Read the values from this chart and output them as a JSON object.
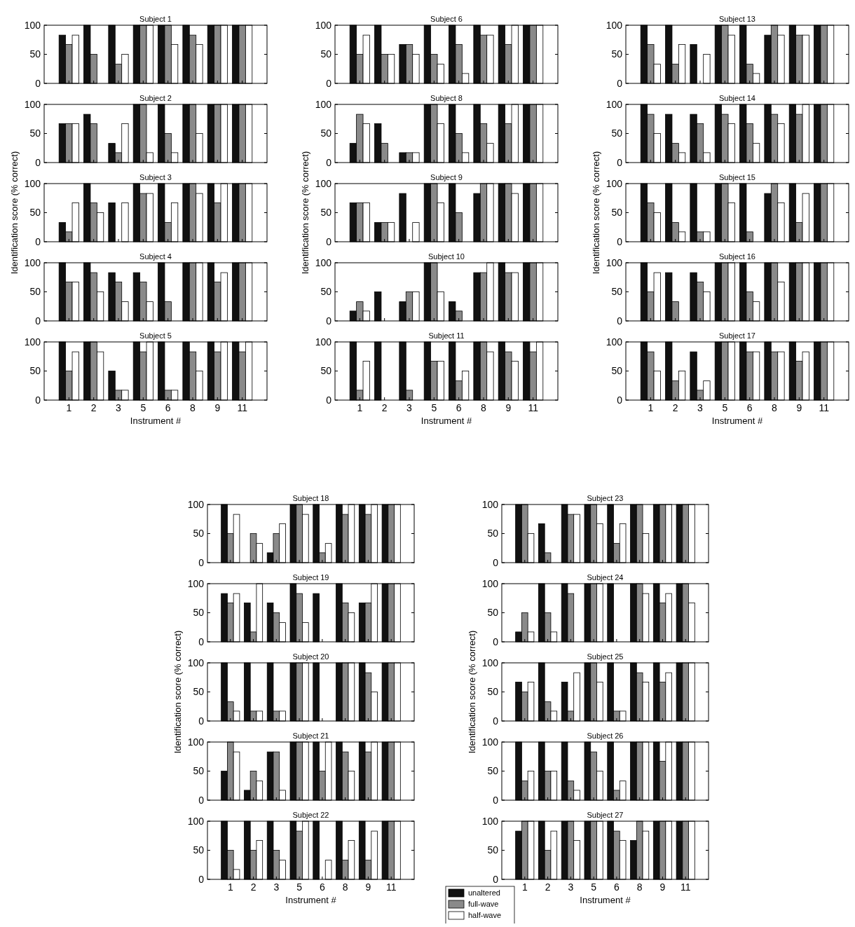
{
  "chart_data": [
    {
      "type": "bar",
      "title": "Subject 1",
      "categories": [
        "1",
        "2",
        "3",
        "5",
        "6",
        "8",
        "9",
        "11"
      ],
      "ylim": [
        0,
        100
      ],
      "yticks": [
        0,
        50,
        100
      ],
      "tick_labels": "y",
      "series": [
        {
          "color": "#111111",
          "values": [
            83,
            100,
            100,
            100,
            100,
            100,
            100,
            100
          ]
        },
        {
          "color": "#8a8a8a",
          "values": [
            67,
            50,
            33,
            100,
            100,
            83,
            100,
            100
          ]
        },
        {
          "color": "#ffffff",
          "values": [
            83,
            0,
            50,
            100,
            67,
            67,
            100,
            100
          ]
        }
      ]
    },
    {
      "type": "bar",
      "title": "Subject 2",
      "categories": [
        "1",
        "2",
        "3",
        "5",
        "6",
        "8",
        "9",
        "11"
      ],
      "ylim": [
        0,
        100
      ],
      "yticks": [
        0,
        50,
        100
      ],
      "tick_labels": "y",
      "series": [
        {
          "color": "#111111",
          "values": [
            67,
            83,
            33,
            100,
            100,
            100,
            100,
            100
          ]
        },
        {
          "color": "#8a8a8a",
          "values": [
            67,
            67,
            17,
            100,
            50,
            100,
            100,
            100
          ]
        },
        {
          "color": "#ffffff",
          "values": [
            67,
            0,
            67,
            17,
            17,
            50,
            100,
            100
          ]
        }
      ]
    },
    {
      "type": "bar",
      "title": "Subject 3",
      "ylabel": "Identification score (% correct)",
      "categories": [
        "1",
        "2",
        "3",
        "5",
        "6",
        "8",
        "9",
        "11"
      ],
      "ylim": [
        0,
        100
      ],
      "yticks": [
        0,
        50,
        100
      ],
      "tick_labels": "y",
      "series": [
        {
          "color": "#111111",
          "values": [
            33,
            100,
            67,
            100,
            100,
            100,
            100,
            100
          ]
        },
        {
          "color": "#8a8a8a",
          "values": [
            17,
            67,
            0,
            83,
            33,
            100,
            67,
            100
          ]
        },
        {
          "color": "#ffffff",
          "values": [
            67,
            50,
            67,
            83,
            67,
            83,
            100,
            100
          ]
        }
      ]
    },
    {
      "type": "bar",
      "title": "Subject 4",
      "categories": [
        "1",
        "2",
        "3",
        "5",
        "6",
        "8",
        "9",
        "11"
      ],
      "ylim": [
        0,
        100
      ],
      "yticks": [
        0,
        50,
        100
      ],
      "tick_labels": "y",
      "series": [
        {
          "color": "#111111",
          "values": [
            100,
            100,
            83,
            83,
            100,
            100,
            100,
            100
          ]
        },
        {
          "color": "#8a8a8a",
          "values": [
            67,
            83,
            67,
            67,
            33,
            100,
            67,
            100
          ]
        },
        {
          "color": "#ffffff",
          "values": [
            67,
            50,
            33,
            33,
            0,
            100,
            83,
            100
          ]
        }
      ]
    },
    {
      "type": "bar",
      "title": "Subject 5",
      "xlabel": "Instrument #",
      "categories": [
        "1",
        "2",
        "3",
        "5",
        "6",
        "8",
        "9",
        "11"
      ],
      "ylim": [
        0,
        100
      ],
      "yticks": [
        0,
        50,
        100
      ],
      "series": [
        {
          "color": "#111111",
          "values": [
            100,
            100,
            50,
            100,
            100,
            100,
            100,
            100
          ]
        },
        {
          "color": "#8a8a8a",
          "values": [
            50,
            100,
            17,
            83,
            17,
            83,
            83,
            83
          ]
        },
        {
          "color": "#ffffff",
          "values": [
            83,
            83,
            17,
            100,
            17,
            50,
            100,
            100
          ]
        }
      ]
    },
    {
      "type": "bar",
      "title": "Subject 6",
      "categories": [
        "1",
        "2",
        "3",
        "5",
        "6",
        "8",
        "9",
        "11"
      ],
      "ylim": [
        0,
        100
      ],
      "yticks": [
        0,
        50,
        100
      ],
      "tick_labels": "y",
      "series": [
        {
          "color": "#111111",
          "values": [
            100,
            100,
            67,
            100,
            100,
            100,
            100,
            100
          ]
        },
        {
          "color": "#8a8a8a",
          "values": [
            50,
            50,
            67,
            50,
            67,
            83,
            67,
            100
          ]
        },
        {
          "color": "#ffffff",
          "values": [
            83,
            50,
            50,
            33,
            17,
            83,
            100,
            100
          ]
        }
      ]
    },
    {
      "type": "bar",
      "title": "Subject 8",
      "categories": [
        "1",
        "2",
        "3",
        "5",
        "6",
        "8",
        "9",
        "11"
      ],
      "ylim": [
        0,
        100
      ],
      "yticks": [
        0,
        50,
        100
      ],
      "tick_labels": "y",
      "series": [
        {
          "color": "#111111",
          "values": [
            33,
            67,
            17,
            100,
            100,
            100,
            100,
            100
          ]
        },
        {
          "color": "#8a8a8a",
          "values": [
            83,
            33,
            17,
            100,
            50,
            67,
            67,
            100
          ]
        },
        {
          "color": "#ffffff",
          "values": [
            67,
            0,
            17,
            67,
            17,
            33,
            100,
            100
          ]
        }
      ]
    },
    {
      "type": "bar",
      "title": "Subject 9",
      "ylabel": "Identification score (% correct)",
      "categories": [
        "1",
        "2",
        "3",
        "5",
        "6",
        "8",
        "9",
        "11"
      ],
      "ylim": [
        0,
        100
      ],
      "yticks": [
        0,
        50,
        100
      ],
      "tick_labels": "y",
      "series": [
        {
          "color": "#111111",
          "values": [
            67,
            33,
            83,
            100,
            100,
            83,
            100,
            100
          ]
        },
        {
          "color": "#8a8a8a",
          "values": [
            67,
            33,
            0,
            100,
            50,
            100,
            100,
            100
          ]
        },
        {
          "color": "#ffffff",
          "values": [
            67,
            33,
            33,
            67,
            0,
            100,
            83,
            100
          ]
        }
      ]
    },
    {
      "type": "bar",
      "title": "Subject 10",
      "categories": [
        "1",
        "2",
        "3",
        "5",
        "6",
        "8",
        "9",
        "11"
      ],
      "ylim": [
        0,
        100
      ],
      "yticks": [
        0,
        50,
        100
      ],
      "tick_labels": "y",
      "series": [
        {
          "color": "#111111",
          "values": [
            17,
            50,
            33,
            100,
            33,
            83,
            100,
            100
          ]
        },
        {
          "color": "#8a8a8a",
          "values": [
            33,
            0,
            50,
            100,
            17,
            83,
            83,
            100
          ]
        },
        {
          "color": "#ffffff",
          "values": [
            17,
            0,
            50,
            50,
            0,
            100,
            83,
            100
          ]
        }
      ]
    },
    {
      "type": "bar",
      "title": "Subject 11",
      "xlabel": "Instrument #",
      "categories": [
        "1",
        "2",
        "3",
        "5",
        "6",
        "8",
        "9",
        "11"
      ],
      "ylim": [
        0,
        100
      ],
      "yticks": [
        0,
        50,
        100
      ],
      "series": [
        {
          "color": "#111111",
          "values": [
            100,
            100,
            100,
            100,
            100,
            100,
            100,
            100
          ]
        },
        {
          "color": "#8a8a8a",
          "values": [
            17,
            0,
            17,
            67,
            33,
            100,
            83,
            83
          ]
        },
        {
          "color": "#ffffff",
          "values": [
            67,
            0,
            0,
            67,
            50,
            83,
            67,
            100
          ]
        }
      ]
    },
    {
      "type": "bar",
      "title": "Subject 13",
      "categories": [
        "1",
        "2",
        "3",
        "5",
        "6",
        "8",
        "9",
        "11"
      ],
      "ylim": [
        0,
        100
      ],
      "yticks": [
        0,
        50,
        100
      ],
      "tick_labels": "y",
      "series": [
        {
          "color": "#111111",
          "values": [
            100,
            100,
            67,
            100,
            100,
            83,
            100,
            100
          ]
        },
        {
          "color": "#8a8a8a",
          "values": [
            67,
            33,
            0,
            100,
            33,
            100,
            83,
            100
          ]
        },
        {
          "color": "#ffffff",
          "values": [
            33,
            67,
            50,
            83,
            17,
            83,
            83,
            100
          ]
        }
      ]
    },
    {
      "type": "bar",
      "title": "Subject 14",
      "categories": [
        "1",
        "2",
        "3",
        "5",
        "6",
        "8",
        "9",
        "11"
      ],
      "ylim": [
        0,
        100
      ],
      "yticks": [
        0,
        50,
        100
      ],
      "tick_labels": "y",
      "series": [
        {
          "color": "#111111",
          "values": [
            100,
            83,
            83,
            100,
            100,
            100,
            100,
            100
          ]
        },
        {
          "color": "#8a8a8a",
          "values": [
            83,
            33,
            67,
            83,
            67,
            83,
            83,
            100
          ]
        },
        {
          "color": "#ffffff",
          "values": [
            50,
            17,
            17,
            67,
            33,
            67,
            100,
            100
          ]
        }
      ]
    },
    {
      "type": "bar",
      "title": "Subject 15",
      "ylabel": "Identification score (% correct)",
      "categories": [
        "1",
        "2",
        "3",
        "5",
        "6",
        "8",
        "9",
        "11"
      ],
      "ylim": [
        0,
        100
      ],
      "yticks": [
        0,
        50,
        100
      ],
      "tick_labels": "y",
      "series": [
        {
          "color": "#111111",
          "values": [
            100,
            100,
            100,
            100,
            100,
            83,
            100,
            100
          ]
        },
        {
          "color": "#8a8a8a",
          "values": [
            67,
            33,
            17,
            100,
            17,
            100,
            33,
            100
          ]
        },
        {
          "color": "#ffffff",
          "values": [
            50,
            17,
            17,
            67,
            0,
            67,
            83,
            100
          ]
        }
      ]
    },
    {
      "type": "bar",
      "title": "Subject 16",
      "categories": [
        "1",
        "2",
        "3",
        "5",
        "6",
        "8",
        "9",
        "11"
      ],
      "ylim": [
        0,
        100
      ],
      "yticks": [
        0,
        50,
        100
      ],
      "tick_labels": "y",
      "series": [
        {
          "color": "#111111",
          "values": [
            100,
            83,
            83,
            100,
            100,
            100,
            100,
            100
          ]
        },
        {
          "color": "#8a8a8a",
          "values": [
            50,
            33,
            67,
            100,
            50,
            100,
            100,
            100
          ]
        },
        {
          "color": "#ffffff",
          "values": [
            83,
            0,
            50,
            100,
            33,
            67,
            100,
            100
          ]
        }
      ]
    },
    {
      "type": "bar",
      "title": "Subject 17",
      "xlabel": "Instrument #",
      "categories": [
        "1",
        "2",
        "3",
        "5",
        "6",
        "8",
        "9",
        "11"
      ],
      "ylim": [
        0,
        100
      ],
      "yticks": [
        0,
        50,
        100
      ],
      "series": [
        {
          "color": "#111111",
          "values": [
            100,
            100,
            83,
            100,
            100,
            100,
            100,
            100
          ]
        },
        {
          "color": "#8a8a8a",
          "values": [
            83,
            33,
            17,
            100,
            83,
            83,
            67,
            100
          ]
        },
        {
          "color": "#ffffff",
          "values": [
            50,
            50,
            33,
            100,
            83,
            83,
            83,
            100
          ]
        }
      ]
    },
    {
      "type": "bar",
      "title": "Subject 18",
      "categories": [
        "1",
        "2",
        "3",
        "5",
        "6",
        "8",
        "9",
        "11"
      ],
      "ylim": [
        0,
        100
      ],
      "yticks": [
        0,
        50,
        100
      ],
      "tick_labels": "y",
      "series": [
        {
          "color": "#111111",
          "values": [
            100,
            0,
            17,
            100,
            100,
            100,
            100,
            100
          ]
        },
        {
          "color": "#8a8a8a",
          "values": [
            50,
            50,
            50,
            100,
            17,
            83,
            83,
            100
          ]
        },
        {
          "color": "#ffffff",
          "values": [
            83,
            33,
            67,
            83,
            33,
            100,
            100,
            100
          ]
        }
      ]
    },
    {
      "type": "bar",
      "title": "Subject 19",
      "categories": [
        "1",
        "2",
        "3",
        "5",
        "6",
        "8",
        "9",
        "11"
      ],
      "ylim": [
        0,
        100
      ],
      "yticks": [
        0,
        50,
        100
      ],
      "tick_labels": "y",
      "series": [
        {
          "color": "#111111",
          "values": [
            83,
            67,
            67,
            100,
            83,
            100,
            67,
            100
          ]
        },
        {
          "color": "#8a8a8a",
          "values": [
            67,
            17,
            50,
            83,
            0,
            67,
            67,
            100
          ]
        },
        {
          "color": "#ffffff",
          "values": [
            83,
            100,
            33,
            33,
            0,
            50,
            100,
            100
          ]
        }
      ]
    },
    {
      "type": "bar",
      "title": "Subject 20",
      "ylabel": "Identification score (% correct)",
      "categories": [
        "1",
        "2",
        "3",
        "5",
        "6",
        "8",
        "9",
        "11"
      ],
      "ylim": [
        0,
        100
      ],
      "yticks": [
        0,
        50,
        100
      ],
      "tick_labels": "y",
      "series": [
        {
          "color": "#111111",
          "values": [
            100,
            100,
            100,
            100,
            100,
            100,
            100,
            100
          ]
        },
        {
          "color": "#8a8a8a",
          "values": [
            33,
            17,
            17,
            100,
            0,
            100,
            83,
            100
          ]
        },
        {
          "color": "#ffffff",
          "values": [
            17,
            17,
            17,
            100,
            0,
            100,
            50,
            100
          ]
        }
      ]
    },
    {
      "type": "bar",
      "title": "Subject 21",
      "categories": [
        "1",
        "2",
        "3",
        "5",
        "6",
        "8",
        "9",
        "11"
      ],
      "ylim": [
        0,
        100
      ],
      "yticks": [
        0,
        50,
        100
      ],
      "tick_labels": "y",
      "series": [
        {
          "color": "#111111",
          "values": [
            50,
            17,
            83,
            100,
            100,
            100,
            100,
            100
          ]
        },
        {
          "color": "#8a8a8a",
          "values": [
            100,
            50,
            83,
            100,
            50,
            83,
            83,
            100
          ]
        },
        {
          "color": "#ffffff",
          "values": [
            83,
            33,
            17,
            100,
            100,
            50,
            100,
            100
          ]
        }
      ]
    },
    {
      "type": "bar",
      "title": "Subject 22",
      "xlabel": "Instrument #",
      "categories": [
        "1",
        "2",
        "3",
        "5",
        "6",
        "8",
        "9",
        "11"
      ],
      "ylim": [
        0,
        100
      ],
      "yticks": [
        0,
        50,
        100
      ],
      "series": [
        {
          "color": "#111111",
          "values": [
            100,
            100,
            100,
            100,
            100,
            100,
            100,
            100
          ]
        },
        {
          "color": "#8a8a8a",
          "values": [
            50,
            50,
            50,
            83,
            0,
            33,
            33,
            100
          ]
        },
        {
          "color": "#ffffff",
          "values": [
            17,
            67,
            33,
            100,
            33,
            67,
            83,
            100
          ]
        }
      ]
    },
    {
      "type": "bar",
      "title": "Subject 23",
      "categories": [
        "1",
        "2",
        "3",
        "5",
        "6",
        "8",
        "9",
        "11"
      ],
      "ylim": [
        0,
        100
      ],
      "yticks": [
        0,
        50,
        100
      ],
      "tick_labels": "y",
      "series": [
        {
          "color": "#111111",
          "values": [
            100,
            67,
            100,
            100,
            100,
            100,
            100,
            100
          ]
        },
        {
          "color": "#8a8a8a",
          "values": [
            100,
            17,
            83,
            100,
            33,
            100,
            100,
            100
          ]
        },
        {
          "color": "#ffffff",
          "values": [
            50,
            0,
            83,
            67,
            67,
            50,
            100,
            100
          ]
        }
      ]
    },
    {
      "type": "bar",
      "title": "Subject 24",
      "categories": [
        "1",
        "2",
        "3",
        "5",
        "6",
        "8",
        "9",
        "11"
      ],
      "ylim": [
        0,
        100
      ],
      "yticks": [
        0,
        50,
        100
      ],
      "tick_labels": "y",
      "series": [
        {
          "color": "#111111",
          "values": [
            17,
            100,
            100,
            100,
            100,
            100,
            100,
            100
          ]
        },
        {
          "color": "#8a8a8a",
          "values": [
            50,
            50,
            83,
            100,
            0,
            100,
            67,
            100
          ]
        },
        {
          "color": "#ffffff",
          "values": [
            17,
            17,
            0,
            100,
            0,
            83,
            83,
            67
          ]
        }
      ]
    },
    {
      "type": "bar",
      "title": "Subject 25",
      "ylabel": "Identification score (% correct)",
      "categories": [
        "1",
        "2",
        "3",
        "5",
        "6",
        "8",
        "9",
        "11"
      ],
      "ylim": [
        0,
        100
      ],
      "yticks": [
        0,
        50,
        100
      ],
      "tick_labels": "y",
      "series": [
        {
          "color": "#111111",
          "values": [
            67,
            100,
            67,
            100,
            100,
            100,
            100,
            100
          ]
        },
        {
          "color": "#8a8a8a",
          "values": [
            50,
            33,
            17,
            100,
            17,
            83,
            67,
            100
          ]
        },
        {
          "color": "#ffffff",
          "values": [
            67,
            17,
            83,
            67,
            17,
            67,
            83,
            100
          ]
        }
      ]
    },
    {
      "type": "bar",
      "title": "Subject 26",
      "categories": [
        "1",
        "2",
        "3",
        "5",
        "6",
        "8",
        "9",
        "11"
      ],
      "ylim": [
        0,
        100
      ],
      "yticks": [
        0,
        50,
        100
      ],
      "tick_labels": "y",
      "series": [
        {
          "color": "#111111",
          "values": [
            100,
            100,
            100,
            100,
            100,
            100,
            100,
            100
          ]
        },
        {
          "color": "#8a8a8a",
          "values": [
            33,
            50,
            33,
            83,
            17,
            100,
            67,
            100
          ]
        },
        {
          "color": "#ffffff",
          "values": [
            50,
            50,
            17,
            50,
            33,
            100,
            100,
            100
          ]
        }
      ]
    },
    {
      "type": "bar",
      "title": "Subject 27",
      "xlabel": "Instrument #",
      "categories": [
        "1",
        "2",
        "3",
        "5",
        "6",
        "8",
        "9",
        "11"
      ],
      "ylim": [
        0,
        100
      ],
      "yticks": [
        0,
        50,
        100
      ],
      "legend": "bottom left",
      "series": [
        {
          "name": "unaltered",
          "color": "#111111",
          "values": [
            83,
            100,
            100,
            100,
            100,
            67,
            100,
            100
          ]
        },
        {
          "name": "full-wave",
          "color": "#8a8a8a",
          "values": [
            100,
            50,
            100,
            100,
            83,
            100,
            100,
            100
          ]
        },
        {
          "name": "half-wave",
          "color": "#ffffff",
          "values": [
            100,
            83,
            67,
            100,
            67,
            83,
            100,
            100
          ]
        }
      ]
    }
  ]
}
